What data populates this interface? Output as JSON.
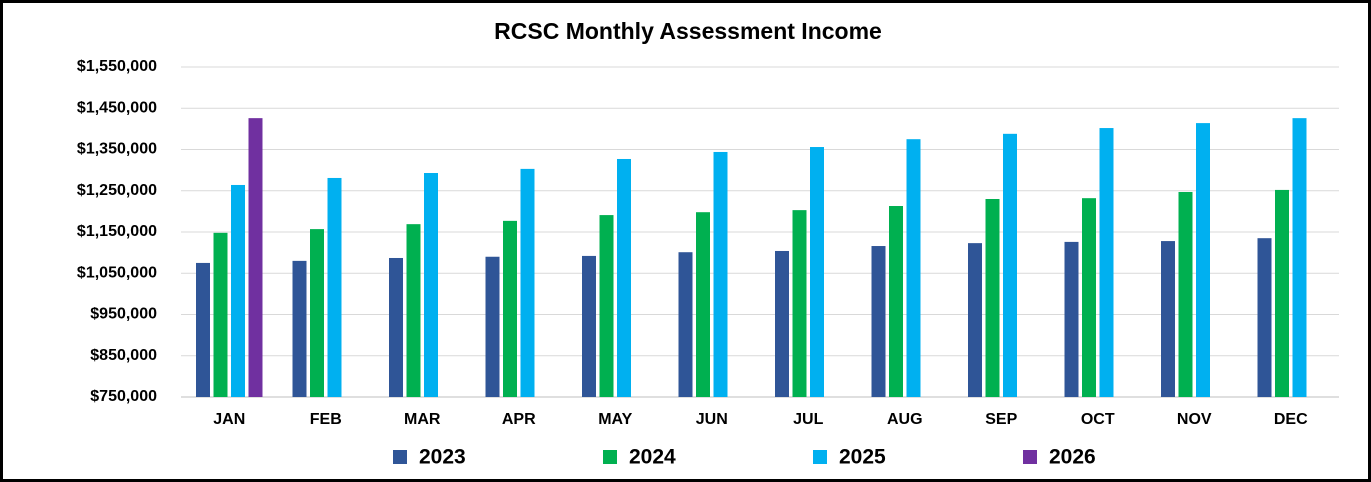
{
  "chart_data": {
    "type": "bar",
    "title": "RCSC Monthly Assessment Income",
    "categories": [
      "JAN",
      "FEB",
      "MAR",
      "APR",
      "MAY",
      "JUN",
      "JUL",
      "AUG",
      "SEP",
      "OCT",
      "NOV",
      "DEC"
    ],
    "series": [
      {
        "name": "2023",
        "color": "#2f5597",
        "values": [
          1075000,
          1080000,
          1087000,
          1090000,
          1092000,
          1101000,
          1104000,
          1116000,
          1123000,
          1126000,
          1128000,
          1135000
        ]
      },
      {
        "name": "2024",
        "color": "#00b050",
        "values": [
          1148000,
          1157000,
          1169000,
          1177000,
          1191000,
          1198000,
          1203000,
          1213000,
          1230000,
          1232000,
          1247000,
          1252000
        ]
      },
      {
        "name": "2025",
        "color": "#00b0f0",
        "values": [
          1264000,
          1281000,
          1293000,
          1303000,
          1327000,
          1344000,
          1356000,
          1375000,
          1388000,
          1402000,
          1414000,
          1426000
        ]
      },
      {
        "name": "2026",
        "color": "#7030a0",
        "values": [
          1426000,
          null,
          null,
          null,
          null,
          null,
          null,
          null,
          null,
          null,
          null,
          null
        ]
      }
    ],
    "ylim": [
      750000,
      1550000
    ],
    "yticks": [
      {
        "value": 750000,
        "label": "$750,000"
      },
      {
        "value": 850000,
        "label": "$850,000"
      },
      {
        "value": 950000,
        "label": "$950,000"
      },
      {
        "value": 1050000,
        "label": "$1,050,000"
      },
      {
        "value": 1150000,
        "label": "$1,150,000"
      },
      {
        "value": 1250000,
        "label": "$1,250,000"
      },
      {
        "value": 1350000,
        "label": "$1,350,000"
      },
      {
        "value": 1450000,
        "label": "$1,450,000"
      },
      {
        "value": 1550000,
        "label": "$1,550,000"
      }
    ],
    "grid": true,
    "legend": "bottom"
  }
}
